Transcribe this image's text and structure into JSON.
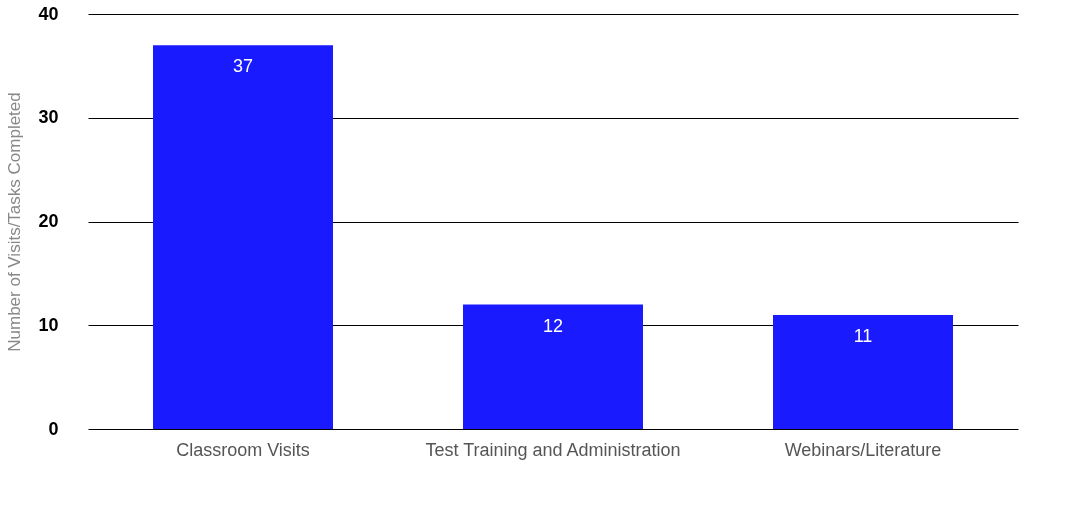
{
  "chart_data": {
    "type": "bar",
    "ylabel": "Number of Visits/Tasks Completed",
    "categories": [
      "Classroom Visits",
      "Test Training and Administration",
      "Webinars/Literature"
    ],
    "values": [
      37,
      12,
      11
    ],
    "color": "#1a1aff",
    "ylim": [
      0,
      40
    ],
    "yticks": [
      0,
      10,
      20,
      30,
      40
    ],
    "grid": "y",
    "data_labels": true
  }
}
